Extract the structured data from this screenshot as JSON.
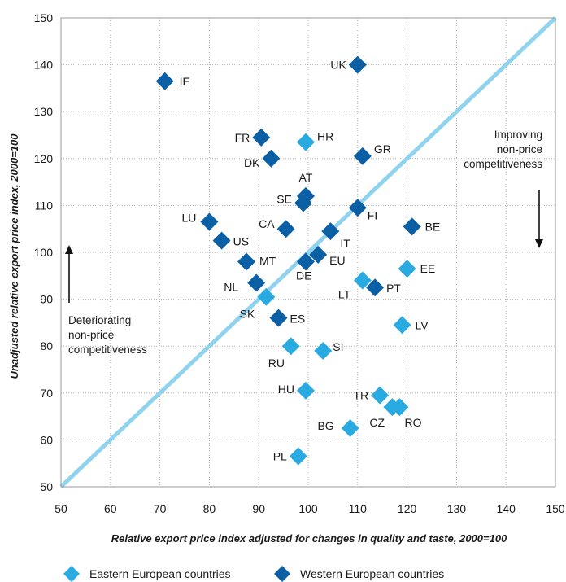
{
  "chart_data": {
    "type": "scatter",
    "xlabel": "Relative export price index adjusted for changes in quality and taste, 2000=100",
    "ylabel": "Unadjusted relative export price index, 2000=100",
    "xlim": [
      50,
      150
    ],
    "ylim": [
      50,
      150
    ],
    "x_ticks": [
      "50",
      "60",
      "70",
      "80",
      "90",
      "100",
      "110",
      "120",
      "130",
      "140",
      "150"
    ],
    "y_ticks": [
      "50",
      "60",
      "70",
      "80",
      "90",
      "100",
      "110",
      "120",
      "130",
      "140",
      "150"
    ],
    "grid": "dotted",
    "reference_line": {
      "from": [
        50,
        50
      ],
      "to": [
        150,
        150
      ],
      "color": "#8fd3ee"
    },
    "annotations": {
      "improving": [
        "Improving",
        "non-price",
        "competitiveness"
      ],
      "deteriorating": [
        "Deteriorating",
        "non-price",
        "competitiveness"
      ]
    },
    "colors": {
      "eastern": "#29abe2",
      "western": "#0b5fa5"
    },
    "legend_position": "bottom",
    "series": [
      {
        "name": "Eastern European countries",
        "points": [
          {
            "label": "HR",
            "x": 99.5,
            "y": 123.5
          },
          {
            "label": "EE",
            "x": 120,
            "y": 96.5
          },
          {
            "label": "LT",
            "x": 111,
            "y": 94
          },
          {
            "label": "SK",
            "x": 91.5,
            "y": 90.5
          },
          {
            "label": "LV",
            "x": 119,
            "y": 84.5
          },
          {
            "label": "RU",
            "x": 96.5,
            "y": 80
          },
          {
            "label": "SI",
            "x": 103,
            "y": 79
          },
          {
            "label": "HU",
            "x": 99.5,
            "y": 70.5
          },
          {
            "label": "TR",
            "x": 114.5,
            "y": 69.5
          },
          {
            "label": "CZ",
            "x": 117,
            "y": 67
          },
          {
            "label": "RO",
            "x": 118.5,
            "y": 67
          },
          {
            "label": "BG",
            "x": 108.5,
            "y": 62.5
          },
          {
            "label": "PL",
            "x": 98,
            "y": 56.5
          }
        ]
      },
      {
        "name": "Western European countries",
        "points": [
          {
            "label": "UK",
            "x": 110,
            "y": 140
          },
          {
            "label": "IE",
            "x": 71,
            "y": 136.5
          },
          {
            "label": "FR",
            "x": 90.5,
            "y": 124.5
          },
          {
            "label": "DK",
            "x": 92.5,
            "y": 120
          },
          {
            "label": "GR",
            "x": 111,
            "y": 120.5
          },
          {
            "label": "AT",
            "x": 99.5,
            "y": 112
          },
          {
            "label": "SE",
            "x": 99,
            "y": 110.5
          },
          {
            "label": "FI",
            "x": 110,
            "y": 109.5
          },
          {
            "label": "LU",
            "x": 80,
            "y": 106.5
          },
          {
            "label": "CA",
            "x": 95.5,
            "y": 105
          },
          {
            "label": "BE",
            "x": 121,
            "y": 105.5
          },
          {
            "label": "IT",
            "x": 104.5,
            "y": 104.5
          },
          {
            "label": "US",
            "x": 82.5,
            "y": 102.5
          },
          {
            "label": "MT",
            "x": 87.5,
            "y": 98
          },
          {
            "label": "EU",
            "x": 102,
            "y": 99.5
          },
          {
            "label": "DE",
            "x": 99.5,
            "y": 98
          },
          {
            "label": "NL",
            "x": 89.5,
            "y": 93.5
          },
          {
            "label": "PT",
            "x": 113.5,
            "y": 92.5
          },
          {
            "label": "ES",
            "x": 94,
            "y": 86
          }
        ]
      }
    ]
  }
}
